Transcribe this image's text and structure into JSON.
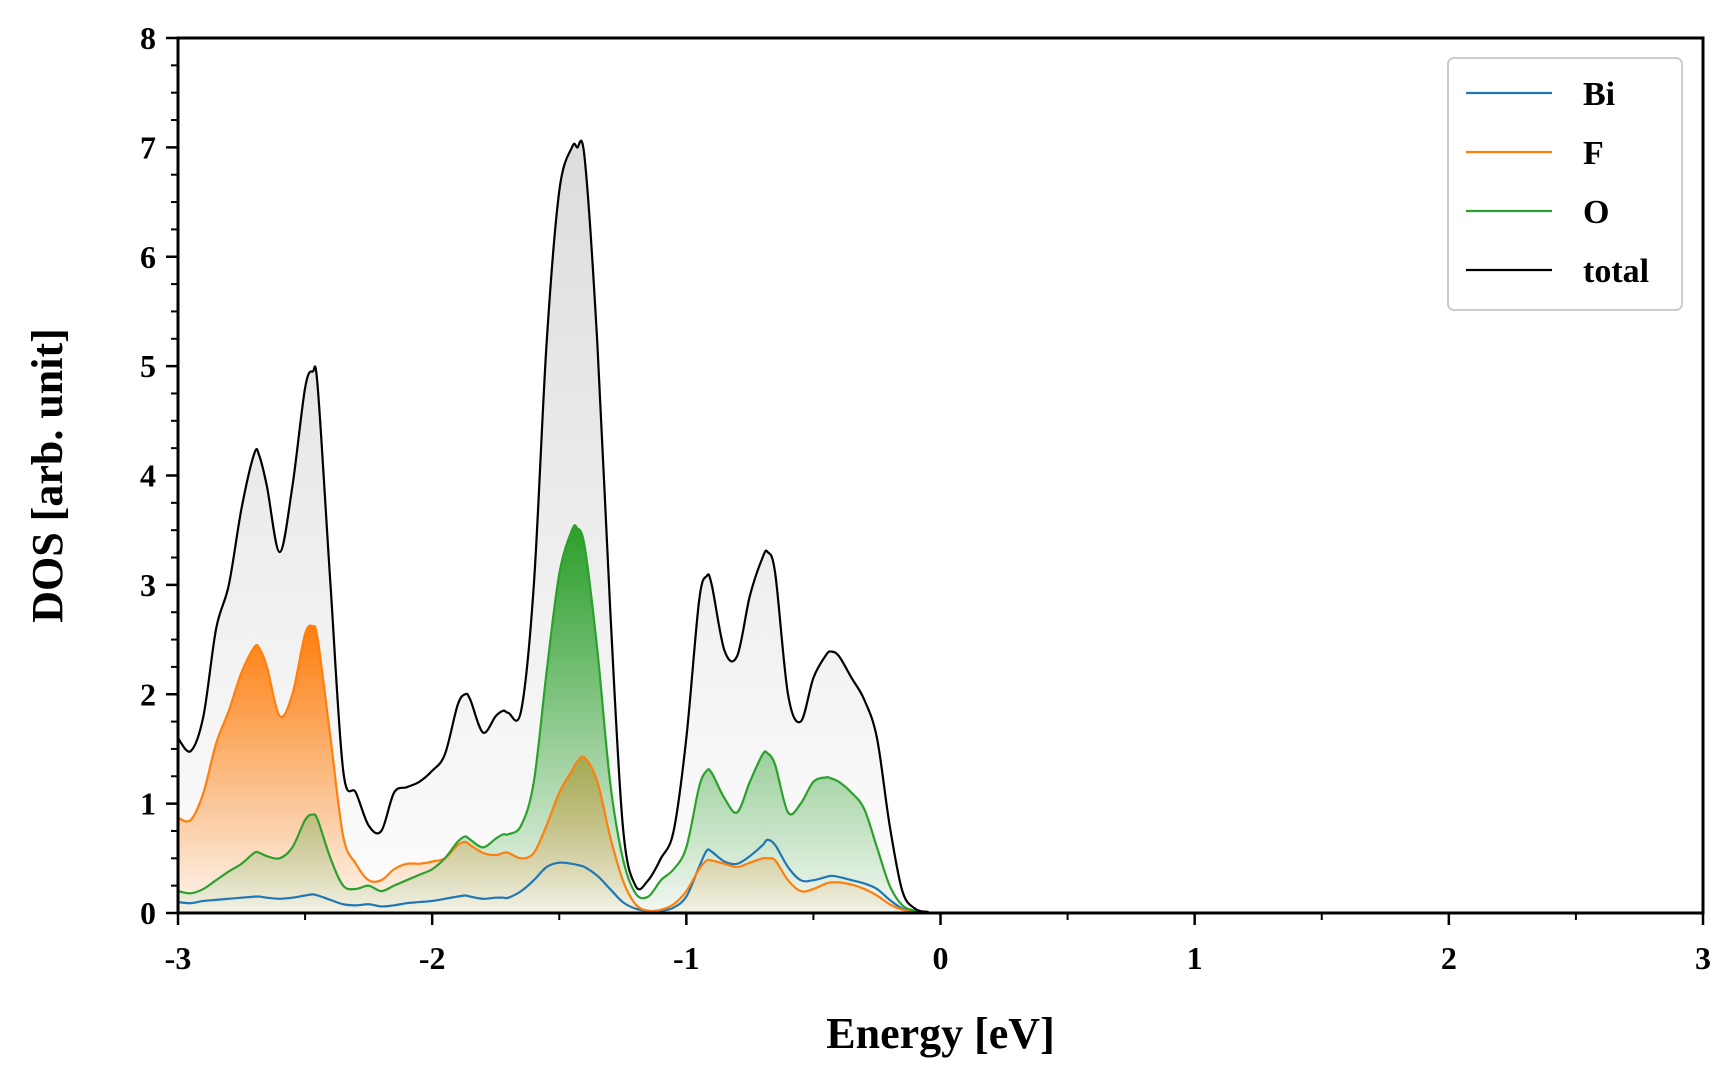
{
  "chart_data": {
    "type": "area",
    "xlabel": "Energy [eV]",
    "ylabel": "DOS [arb. unit]",
    "xlim": [
      -3,
      3
    ],
    "ylim": [
      0,
      8
    ],
    "xticks": [
      "-3",
      "-2",
      "-1",
      "0",
      "1",
      "2",
      "3"
    ],
    "yticks": [
      "0",
      "1",
      "2",
      "3",
      "4",
      "5",
      "6",
      "7",
      "8"
    ],
    "legend": {
      "placement": "top-right"
    },
    "grid": false,
    "x": [
      -3.0,
      -2.95,
      -2.9,
      -2.85,
      -2.8,
      -2.75,
      -2.7,
      -2.68,
      -2.65,
      -2.6,
      -2.55,
      -2.5,
      -2.47,
      -2.45,
      -2.4,
      -2.35,
      -2.3,
      -2.25,
      -2.2,
      -2.15,
      -2.1,
      -2.05,
      -2.0,
      -1.95,
      -1.9,
      -1.87,
      -1.85,
      -1.8,
      -1.75,
      -1.72,
      -1.7,
      -1.65,
      -1.6,
      -1.55,
      -1.5,
      -1.45,
      -1.43,
      -1.4,
      -1.35,
      -1.3,
      -1.25,
      -1.2,
      -1.15,
      -1.1,
      -1.05,
      -1.0,
      -0.95,
      -0.92,
      -0.9,
      -0.85,
      -0.8,
      -0.75,
      -0.7,
      -0.68,
      -0.65,
      -0.6,
      -0.55,
      -0.5,
      -0.45,
      -0.43,
      -0.4,
      -0.35,
      -0.3,
      -0.25,
      -0.2,
      -0.15,
      -0.1,
      -0.05,
      0.0,
      3.0
    ],
    "series": [
      {
        "name": "Bi",
        "color": "#1f77b4",
        "values": [
          0.1,
          0.09,
          0.11,
          0.12,
          0.13,
          0.14,
          0.15,
          0.15,
          0.14,
          0.13,
          0.14,
          0.16,
          0.17,
          0.16,
          0.12,
          0.08,
          0.07,
          0.08,
          0.06,
          0.07,
          0.09,
          0.1,
          0.11,
          0.13,
          0.15,
          0.16,
          0.15,
          0.13,
          0.14,
          0.14,
          0.14,
          0.2,
          0.3,
          0.42,
          0.46,
          0.45,
          0.44,
          0.42,
          0.34,
          0.22,
          0.1,
          0.04,
          0.02,
          0.02,
          0.05,
          0.15,
          0.42,
          0.57,
          0.56,
          0.47,
          0.45,
          0.52,
          0.62,
          0.67,
          0.62,
          0.42,
          0.3,
          0.3,
          0.33,
          0.34,
          0.33,
          0.3,
          0.27,
          0.22,
          0.12,
          0.04,
          0.01,
          0.0,
          0.0,
          0.0
        ]
      },
      {
        "name": "F",
        "color": "#ff7f0e",
        "values": [
          0.87,
          0.85,
          1.1,
          1.55,
          1.85,
          2.2,
          2.43,
          2.42,
          2.25,
          1.8,
          2.0,
          2.55,
          2.62,
          2.5,
          1.6,
          0.7,
          0.45,
          0.3,
          0.3,
          0.4,
          0.45,
          0.45,
          0.47,
          0.5,
          0.62,
          0.65,
          0.62,
          0.55,
          0.53,
          0.55,
          0.55,
          0.5,
          0.55,
          0.8,
          1.1,
          1.3,
          1.38,
          1.42,
          1.2,
          0.7,
          0.3,
          0.08,
          0.02,
          0.03,
          0.08,
          0.2,
          0.4,
          0.48,
          0.48,
          0.45,
          0.42,
          0.46,
          0.5,
          0.5,
          0.48,
          0.3,
          0.2,
          0.22,
          0.27,
          0.28,
          0.28,
          0.26,
          0.22,
          0.16,
          0.08,
          0.03,
          0.01,
          0.0,
          0.0,
          0.0
        ]
      },
      {
        "name": "O",
        "color": "#2ca02c",
        "values": [
          0.2,
          0.18,
          0.22,
          0.3,
          0.38,
          0.45,
          0.55,
          0.55,
          0.52,
          0.5,
          0.6,
          0.85,
          0.9,
          0.85,
          0.5,
          0.25,
          0.22,
          0.25,
          0.2,
          0.25,
          0.3,
          0.35,
          0.4,
          0.5,
          0.65,
          0.7,
          0.67,
          0.6,
          0.68,
          0.72,
          0.72,
          0.8,
          1.2,
          2.2,
          3.1,
          3.5,
          3.52,
          3.35,
          2.4,
          1.2,
          0.5,
          0.18,
          0.15,
          0.3,
          0.4,
          0.6,
          1.15,
          1.3,
          1.28,
          1.05,
          0.92,
          1.2,
          1.45,
          1.46,
          1.35,
          0.92,
          1.0,
          1.2,
          1.24,
          1.23,
          1.2,
          1.1,
          0.95,
          0.6,
          0.25,
          0.07,
          0.02,
          0.0,
          0.0,
          0.0
        ]
      },
      {
        "name": "total",
        "color": "#000000",
        "values": [
          1.6,
          1.48,
          1.8,
          2.6,
          3.0,
          3.7,
          4.2,
          4.18,
          3.9,
          3.3,
          3.9,
          4.8,
          4.95,
          4.8,
          3.0,
          1.3,
          1.1,
          0.8,
          0.75,
          1.1,
          1.15,
          1.2,
          1.3,
          1.45,
          1.9,
          2.0,
          1.95,
          1.65,
          1.8,
          1.85,
          1.83,
          1.85,
          3.0,
          5.2,
          6.6,
          7.0,
          7.0,
          6.9,
          5.2,
          2.8,
          0.8,
          0.25,
          0.3,
          0.5,
          0.75,
          1.6,
          2.85,
          3.08,
          3.0,
          2.4,
          2.35,
          2.9,
          3.25,
          3.3,
          3.1,
          2.0,
          1.75,
          2.15,
          2.36,
          2.39,
          2.35,
          2.15,
          1.95,
          1.6,
          0.8,
          0.2,
          0.04,
          0.01,
          0.0,
          0.0
        ]
      }
    ]
  }
}
